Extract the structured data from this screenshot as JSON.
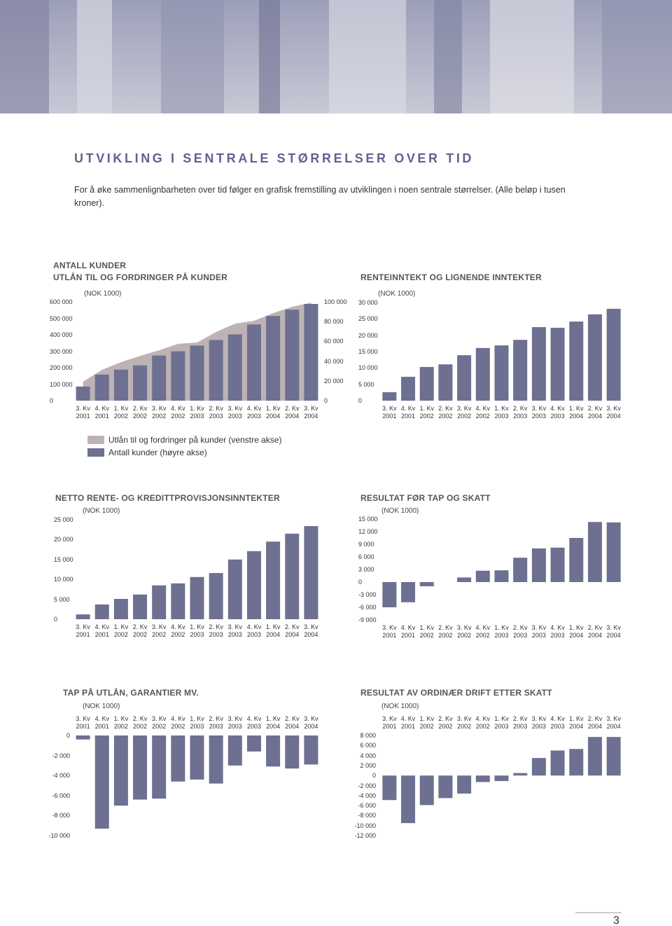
{
  "header": {
    "title": "UTVIKLING I SENTRALE STØRRELSER OVER TID",
    "intro": "For å øke sammenlignbarheten over tid følger en grafisk fremstilling av utviklingen i noen sentrale størrelser. (Alle beløp i tusen kroner)."
  },
  "page_number": "3",
  "chart_data": [
    {
      "type": "bar",
      "title": [
        "ANTALL KUNDER",
        "UTLÅN TIL OG FORDRINGER PÅ KUNDER"
      ],
      "unit": "(NOK 1000)",
      "categories": [
        "3. Kv 2001",
        "4. Kv 2001",
        "1. Kv 2002",
        "2. Kv 2002",
        "3. Kv 2002",
        "4. Kv 2002",
        "1. Kv 2003",
        "2. Kv 2003",
        "3. Kv 2003",
        "4. Kv 2003",
        "1. Kv 2004",
        "2. Kv 2004",
        "3. Kv 2004"
      ],
      "series": [
        {
          "name": "Utlån til og fordringer på kunder (venstre akse)",
          "type": "area",
          "color": "#bdb3b4",
          "values": [
            115000,
            187000,
            234000,
            272000,
            306000,
            345000,
            353000,
            417000,
            468000,
            485000,
            532000,
            570000,
            596000
          ]
        },
        {
          "name": "Antall kunder (høyre akse)",
          "type": "bar",
          "axis": "y2",
          "color": "#6d7090",
          "values": [
            14300,
            26400,
            31400,
            35700,
            45700,
            50000,
            55700,
            61400,
            67100,
            77100,
            85700,
            92100,
            97900
          ]
        }
      ],
      "ylim": [
        0,
        600000
      ],
      "yticks": [
        0,
        {
          "value": 100000,
          "label": "100 000"
        },
        {
          "value": 200000,
          "label": "200 000"
        },
        {
          "value": 300000,
          "label": "300 000"
        },
        {
          "value": 400000,
          "label": "400 000"
        },
        {
          "value": 500000,
          "label": "500 000"
        },
        {
          "value": 600000,
          "label": "600 000"
        }
      ],
      "y2lim": [
        0,
        100000
      ],
      "y2ticks": [
        0,
        {
          "value": 20000,
          "label": "20 000"
        },
        {
          "value": 40000,
          "label": "40 000"
        },
        {
          "value": 60000,
          "label": "60 000"
        },
        {
          "value": 80000,
          "label": "80 000"
        },
        {
          "value": 100000,
          "label": "100 000"
        }
      ],
      "legend": "bottom-left",
      "xaxis_position": "bottom"
    },
    {
      "type": "bar",
      "title": [
        "RENTEINNTEKT OG LIGNENDE INNTEKTER"
      ],
      "unit": "(NOK 1000)",
      "categories": [
        "3. Kv 2001",
        "4. Kv 2001",
        "1. Kv 2002",
        "2. Kv 2002",
        "3. Kv 2002",
        "4. Kv 2002",
        "1. Kv 2003",
        "2. Kv 2003",
        "3. Kv 2003",
        "4. Kv 2003",
        "1. Kv 2004",
        "2. Kv 2004",
        "3. Kv 2004"
      ],
      "values": [
        2600,
        7300,
        10300,
        11100,
        13900,
        16100,
        16900,
        18600,
        22500,
        22300,
        24200,
        26400,
        28100
      ],
      "color": "#6d7090",
      "ylim": [
        0,
        30000
      ],
      "yticks": [
        0,
        {
          "value": 5000,
          "label": "5 000"
        },
        {
          "value": 10000,
          "label": "10 000"
        },
        {
          "value": 15000,
          "label": "15 000"
        },
        {
          "value": 20000,
          "label": "20 000"
        },
        {
          "value": 25000,
          "label": "25 000"
        },
        {
          "value": 30000,
          "label": "30 000"
        }
      ],
      "xaxis_position": "bottom"
    },
    {
      "type": "bar",
      "title": [
        "NETTO RENTE- OG KREDITTPROVISJONSINNTEKTER"
      ],
      "unit": "(NOK 1000)",
      "categories": [
        "3. Kv 2001",
        "4. Kv 2001",
        "1. Kv 2002",
        "2. Kv 2002",
        "3. Kv 2002",
        "4. Kv 2002",
        "1. Kv 2003",
        "2. Kv 2003",
        "3. Kv 2003",
        "4. Kv 2003",
        "1. Kv 2004",
        "2. Kv 2004",
        "3. Kv 2004"
      ],
      "values": [
        1200,
        3700,
        5100,
        6200,
        8500,
        9000,
        10600,
        11600,
        15000,
        17100,
        19500,
        21500,
        23400
      ],
      "color": "#6d7090",
      "ylim": [
        0,
        25000
      ],
      "yticks": [
        0,
        {
          "value": 5000,
          "label": "5 000"
        },
        {
          "value": 10000,
          "label": "10 000"
        },
        {
          "value": 15000,
          "label": "15 000"
        },
        {
          "value": 20000,
          "label": "20 000"
        },
        {
          "value": 25000,
          "label": "25 000"
        }
      ],
      "xaxis_position": "bottom"
    },
    {
      "type": "bar",
      "title": [
        "RESULTAT FØR TAP OG SKATT"
      ],
      "unit": "(NOK 1000)",
      "categories": [
        "3. Kv 2001",
        "4. Kv 2001",
        "1. Kv 2002",
        "2. Kv 2002",
        "3. Kv 2002",
        "4. Kv 2002",
        "1. Kv 2003",
        "2. Kv 2003",
        "3. Kv 2003",
        "4. Kv 2003",
        "1. Kv 2004",
        "2. Kv 2004",
        "3. Kv 2004"
      ],
      "values": [
        -6000,
        -4800,
        -1000,
        0,
        1100,
        2700,
        2800,
        5800,
        8000,
        8200,
        10500,
        14300,
        14200
      ],
      "color": "#6d7090",
      "ylim": [
        -9000,
        15000
      ],
      "yticks": [
        {
          "value": -9000,
          "label": "-9 000"
        },
        {
          "value": -6000,
          "label": "-6 000"
        },
        {
          "value": -3000,
          "label": "-3 000"
        },
        0,
        {
          "value": 3000,
          "label": "3 000"
        },
        {
          "value": 6000,
          "label": "6 000"
        },
        {
          "value": 9000,
          "label": "9 000"
        },
        {
          "value": 12000,
          "label": "12 000"
        },
        {
          "value": 15000,
          "label": "15 000"
        }
      ],
      "xaxis_position": "bottom"
    },
    {
      "type": "bar",
      "title": [
        "TAP PÅ UTLÅN, GARANTIER MV."
      ],
      "unit": "(NOK 1000)",
      "categories": [
        "3. Kv 2001",
        "4. Kv 2001",
        "1. Kv 2002",
        "2. Kv 2002",
        "3. Kv 2002",
        "4. Kv 2002",
        "1. Kv 2003",
        "2. Kv 2003",
        "3. Kv 2003",
        "4. Kv 2003",
        "1. Kv 2004",
        "2. Kv 2004",
        "3. Kv 2004"
      ],
      "values": [
        -400,
        -9300,
        -7000,
        -6400,
        -6300,
        -4600,
        -4400,
        -4800,
        -3000,
        -1600,
        -3100,
        -3300,
        -2900
      ],
      "color": "#6d7090",
      "ylim": [
        -10000,
        0
      ],
      "yticks": [
        0,
        {
          "value": -2000,
          "label": "-2 000"
        },
        {
          "value": -4000,
          "label": "-4 000"
        },
        {
          "value": -6000,
          "label": "-6 000"
        },
        {
          "value": -8000,
          "label": "-8 000"
        },
        {
          "value": -10000,
          "label": "-10 000"
        }
      ],
      "xaxis_position": "top"
    },
    {
      "type": "bar",
      "title": [
        "RESULTAT AV ORDINÆR DRIFT ETTER SKATT"
      ],
      "unit": "(NOK 1000)",
      "categories": [
        "3. Kv 2001",
        "4. Kv 2001",
        "1. Kv 2002",
        "2. Kv 2002",
        "3. Kv 2002",
        "4. Kv 2002",
        "1. Kv 2003",
        "2. Kv 2003",
        "3. Kv 2003",
        "4. Kv 2003",
        "1. Kv 2004",
        "2. Kv 2004",
        "3. Kv 2004"
      ],
      "values": [
        -4900,
        -9500,
        -5900,
        -4500,
        -3600,
        -1300,
        -1100,
        500,
        3500,
        5000,
        5300,
        7700,
        7700
      ],
      "color": "#6d7090",
      "ylim": [
        -12000,
        8000
      ],
      "yticks": [
        {
          "value": 8000,
          "label": "8 000"
        },
        {
          "value": 6000,
          "label": "6 000"
        },
        {
          "value": 4000,
          "label": "4 000"
        },
        {
          "value": 2000,
          "label": "2 000"
        },
        0,
        {
          "value": -2000,
          "label": "-2 000"
        },
        {
          "value": -4000,
          "label": "-4 000"
        },
        {
          "value": -6000,
          "label": "-6 000"
        },
        {
          "value": -8000,
          "label": "-8 000"
        },
        {
          "value": -10000,
          "label": "-10 000"
        },
        {
          "value": -12000,
          "label": "-12 000"
        }
      ],
      "xaxis_position": "top"
    }
  ]
}
